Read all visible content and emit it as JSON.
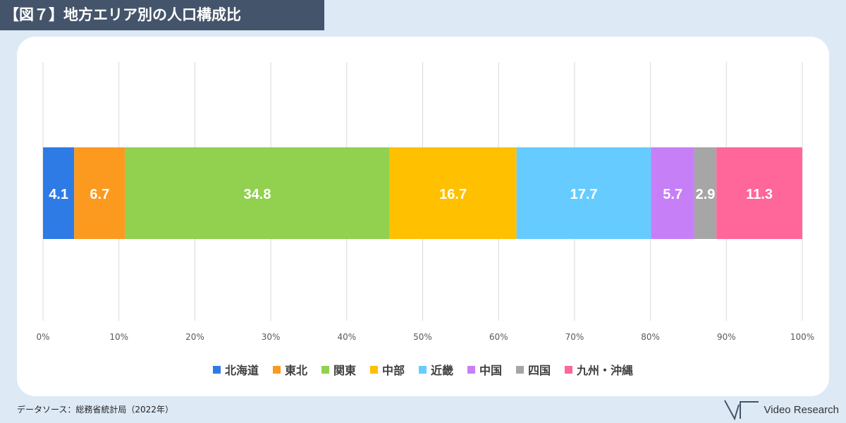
{
  "header": {
    "title": "【図７】地方エリア別の人口構成比"
  },
  "footer": {
    "source": "データソース：総務省統計局（2022年）",
    "brand": "Video Research"
  },
  "chart_data": {
    "type": "bar",
    "orientation": "horizontal",
    "stacked": "percent",
    "xlim": [
      0,
      100
    ],
    "x_ticks": [
      "0%",
      "10%",
      "20%",
      "30%",
      "40%",
      "50%",
      "60%",
      "70%",
      "80%",
      "90%",
      "100%"
    ],
    "grid": "vertical",
    "legend_position": "bottom",
    "series": [
      {
        "name": "北海道",
        "value": 4.1,
        "label": "4.1",
        "color": "#2e7be6"
      },
      {
        "name": "東北",
        "value": 6.7,
        "label": "6.7",
        "color": "#fb9a1e"
      },
      {
        "name": "関東",
        "value": 34.8,
        "label": "34.8",
        "color": "#92d050"
      },
      {
        "name": "中部",
        "value": 16.7,
        "label": "16.7",
        "color": "#ffc000"
      },
      {
        "name": "近畿",
        "value": 17.7,
        "label": "17.7",
        "color": "#66ccff"
      },
      {
        "name": "中国",
        "value": 5.7,
        "label": "5.7",
        "color": "#c77ff7"
      },
      {
        "name": "四国",
        "value": 2.9,
        "label": "2.9",
        "color": "#a6a6a6"
      },
      {
        "name": "九州・沖縄",
        "value": 11.3,
        "label": "11.3",
        "color": "#ff6699"
      }
    ]
  }
}
